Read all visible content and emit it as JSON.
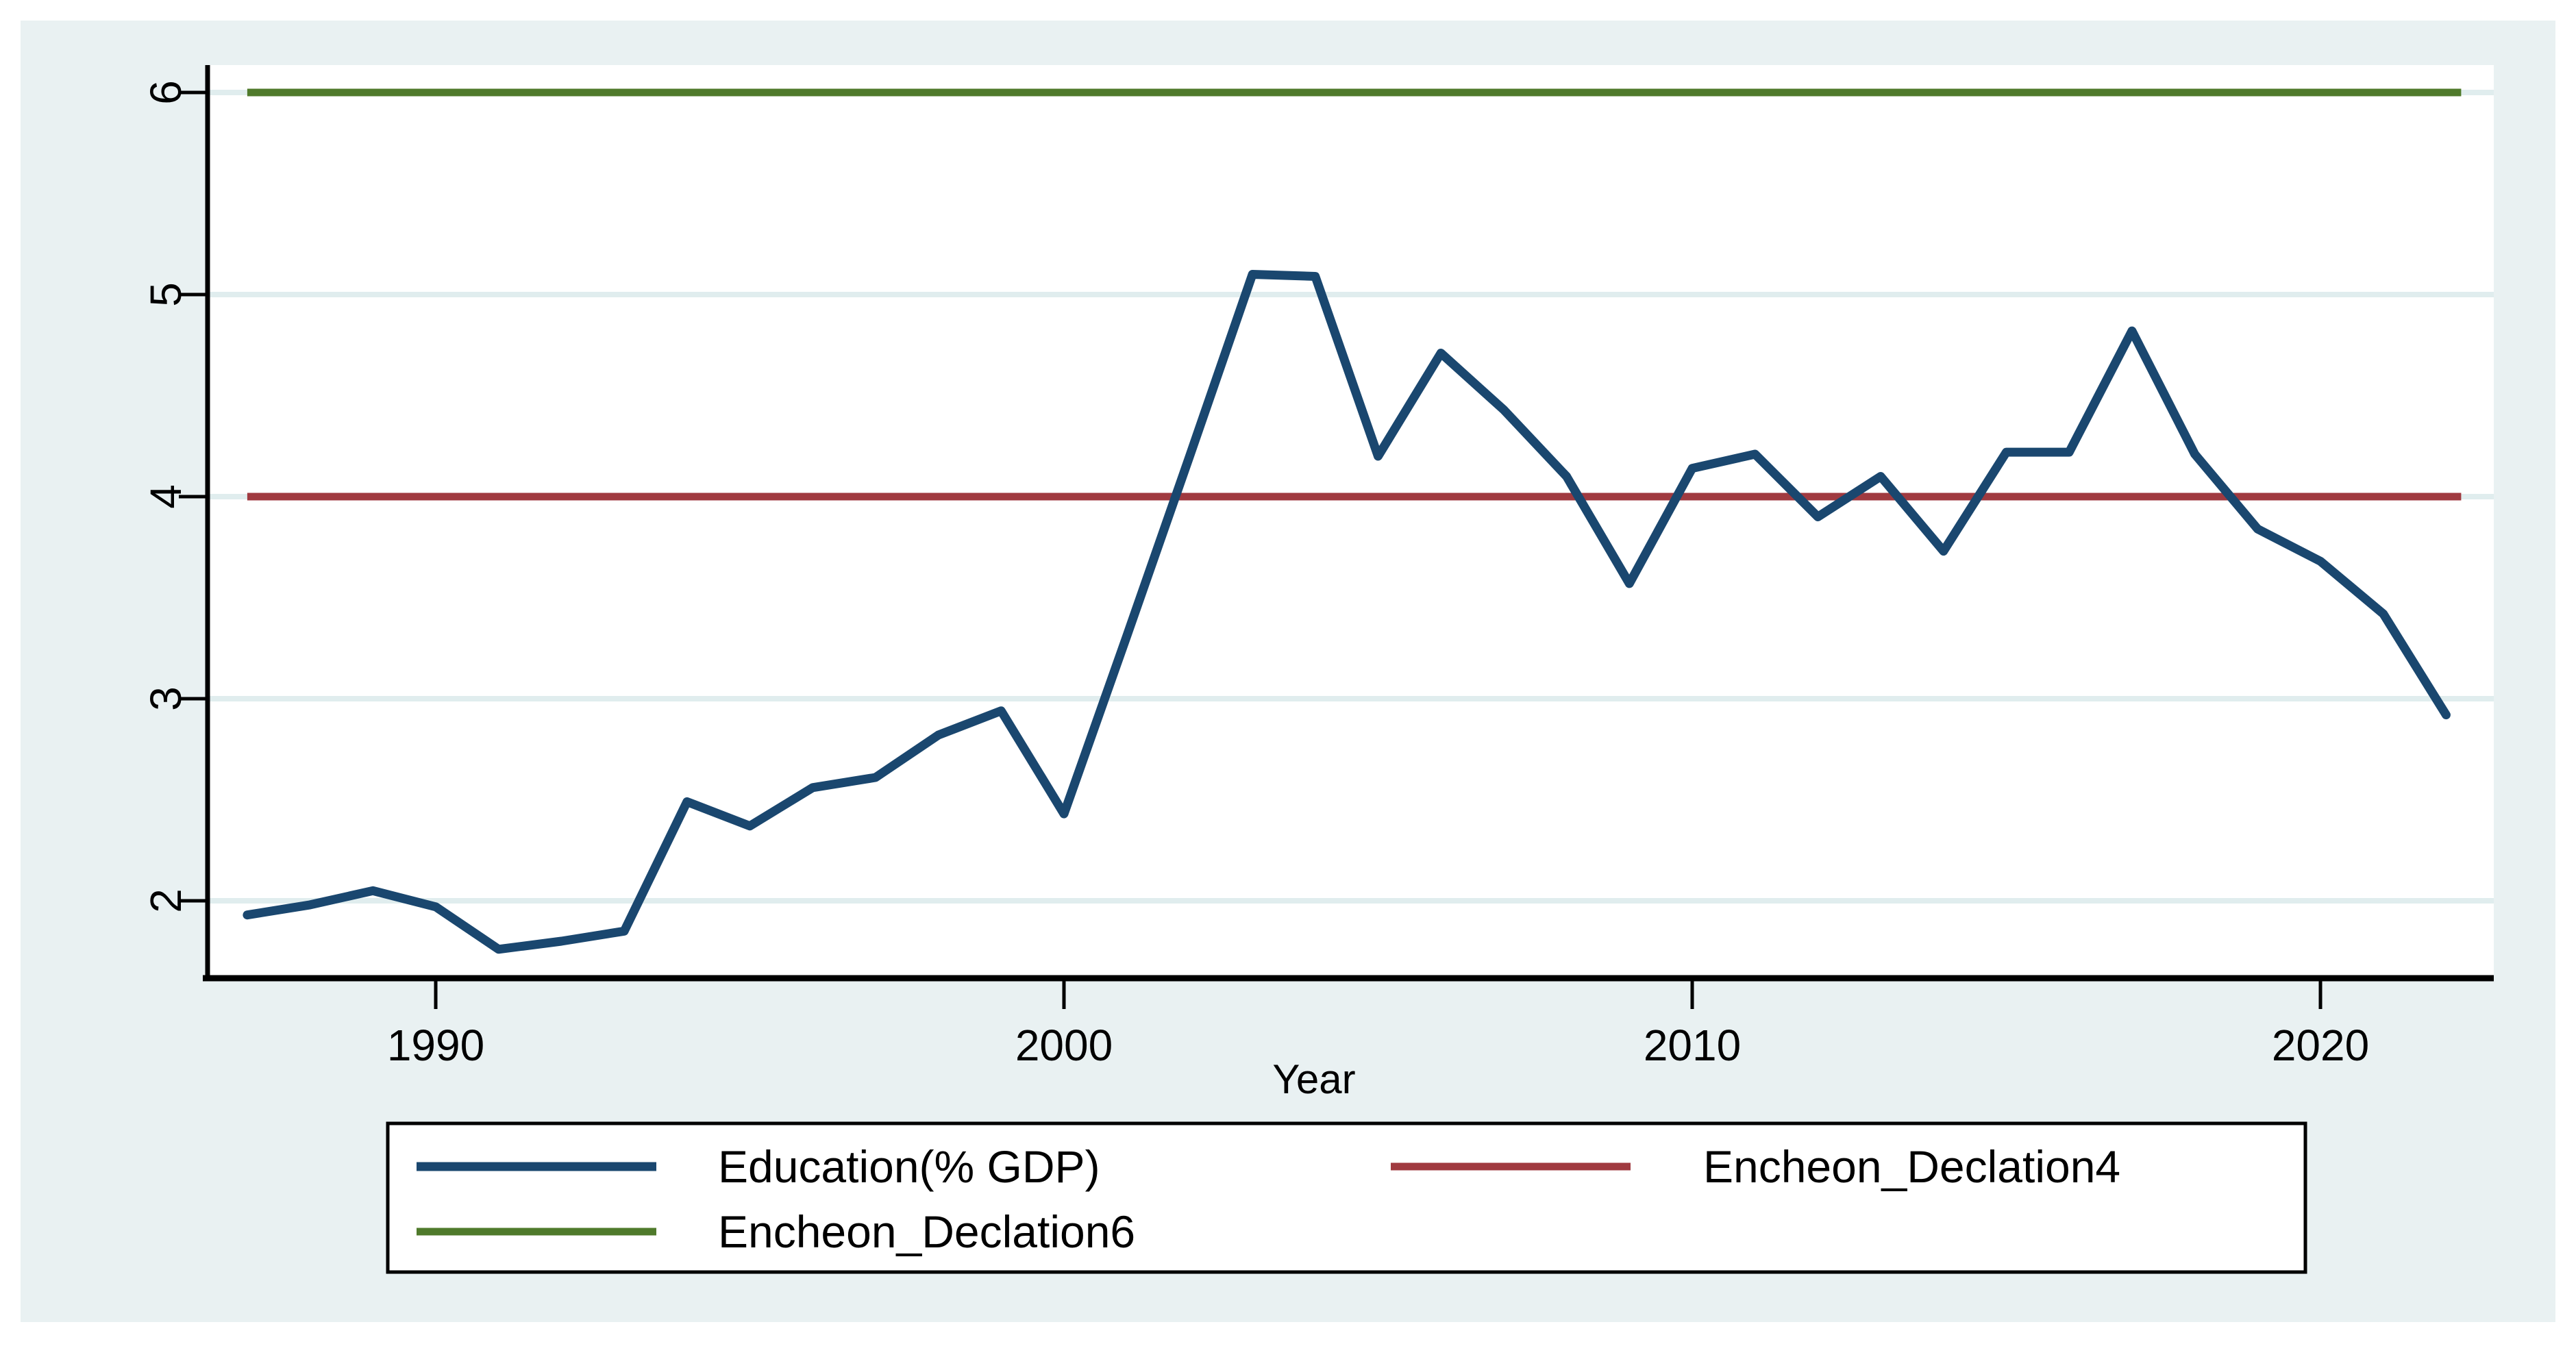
{
  "figure": {
    "background": "#ffffff",
    "canvas_color": "#e9f1f2",
    "plot_background": "#ffffff",
    "grid_color": "#e0edee",
    "axis_color": "#000000",
    "text_color": "#000000"
  },
  "chart_data": {
    "type": "line",
    "title": "",
    "xlabel": "Year",
    "ylabel": "",
    "grid": true,
    "legend_position": "bottom",
    "xlim": [
      1986.4,
      2022.8
    ],
    "ylim": [
      1.62,
      6.14
    ],
    "x_ticks": [
      "1990",
      "2000",
      "2010",
      "2020"
    ],
    "x_tick_years": [
      1990,
      2000,
      2010,
      2020
    ],
    "y_ticks": [
      "2",
      "3",
      "4",
      "5",
      "6"
    ],
    "y_tick_values": [
      2,
      3,
      4,
      5,
      6
    ],
    "x": [
      1987,
      1988,
      1989,
      1990,
      1991,
      1992,
      1993,
      1994,
      1995,
      1996,
      1997,
      1998,
      1999,
      2000,
      2001,
      2002,
      2003,
      2004,
      2005,
      2006,
      2007,
      2008,
      2009,
      2010,
      2011,
      2012,
      2013,
      2014,
      2015,
      2016,
      2017,
      2018,
      2019,
      2020,
      2021,
      2022
    ],
    "series": [
      {
        "name": "Education(% GDP)",
        "kind": "data-line",
        "color": "#1a476f",
        "values": [
          1.93,
          1.98,
          2.05,
          1.97,
          1.76,
          1.8,
          1.85,
          2.49,
          2.37,
          2.56,
          2.61,
          2.82,
          2.94,
          2.43,
          3.31,
          4.2,
          5.1,
          5.09,
          4.2,
          4.71,
          4.43,
          4.1,
          3.57,
          4.14,
          4.21,
          3.9,
          4.1,
          3.73,
          4.22,
          4.22,
          4.82,
          4.21,
          3.84,
          3.68,
          3.42,
          2.92
        ]
      },
      {
        "name": "Encheon_Declation4",
        "kind": "constant-line",
        "color": "#a03a40",
        "value": 4
      },
      {
        "name": "Encheon_Declation6",
        "kind": "constant-line",
        "color": "#4f7a2b",
        "value": 6
      }
    ],
    "legend_cells": [
      {
        "series": 0,
        "col": 0,
        "row": 0
      },
      {
        "series": 1,
        "col": 1,
        "row": 0
      },
      {
        "series": 2,
        "col": 0,
        "row": 1
      }
    ]
  }
}
